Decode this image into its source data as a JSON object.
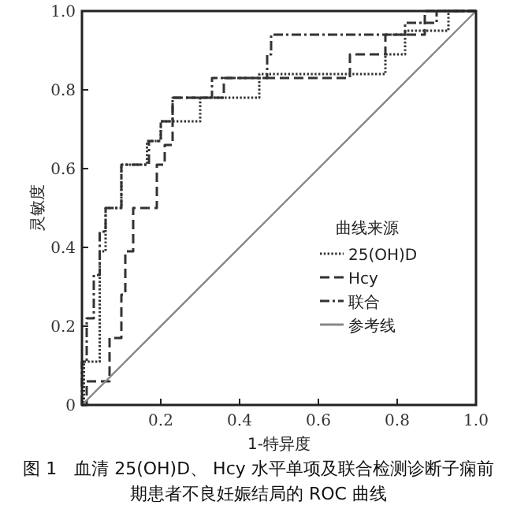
{
  "chart_data": {
    "type": "line",
    "xlabel": "1-特异度",
    "ylabel": "灵敏度",
    "legend_title": "曲线来源",
    "annotations": [
      "图 1　血清 25(OH)D、 Hcy 水平单项及联合检测诊断子痫前期患者不良妊娠结局的 ROC 曲线"
    ],
    "xlim": [
      0,
      1
    ],
    "ylim": [
      0,
      1
    ],
    "xticks": [
      0.2,
      0.4,
      0.6,
      0.8,
      {
        "value": 1,
        "label": "1.0"
      }
    ],
    "yticks": [
      0,
      0.2,
      0.4,
      0.6,
      0.8,
      {
        "value": 1,
        "label": "1.0"
      }
    ],
    "grid": false,
    "legend": "bottom right",
    "marker": "none",
    "series": [
      {
        "name": "25(OH)D",
        "color": "#333333",
        "line_style": "dotted",
        "x": [
          0,
          0.005,
          0.005,
          0.045,
          0.045,
          0.06,
          0.06,
          0.1,
          0.1,
          0.165,
          0.165,
          0.2,
          0.2,
          0.3,
          0.3,
          0.45,
          0.45,
          0.77,
          0.77,
          0.82,
          0.82,
          0.93,
          0.93,
          1
        ],
        "values": [
          0,
          0,
          0.11,
          0.11,
          0.39,
          0.39,
          0.5,
          0.5,
          0.61,
          0.61,
          0.67,
          0.67,
          0.72,
          0.72,
          0.78,
          0.78,
          0.84,
          0.84,
          0.89,
          0.89,
          0.95,
          0.95,
          1,
          1
        ]
      },
      {
        "name": "Hcy",
        "color": "#333333",
        "line_style": "dashed",
        "x": [
          0,
          0.012,
          0.012,
          0.07,
          0.07,
          0.1,
          0.1,
          0.11,
          0.11,
          0.13,
          0.13,
          0.19,
          0.19,
          0.21,
          0.21,
          0.23,
          0.23,
          0.36,
          0.36,
          0.68,
          0.68,
          0.77,
          0.77,
          0.87,
          0.87,
          1
        ],
        "values": [
          0,
          0,
          0.06,
          0.06,
          0.17,
          0.17,
          0.28,
          0.28,
          0.39,
          0.39,
          0.5,
          0.5,
          0.61,
          0.61,
          0.66,
          0.66,
          0.78,
          0.78,
          0.83,
          0.83,
          0.89,
          0.89,
          0.94,
          0.94,
          1,
          1
        ]
      },
      {
        "name": "联合",
        "color": "#333333",
        "line_style": "dashdot",
        "x": [
          0,
          0,
          0.012,
          0.012,
          0.03,
          0.03,
          0.045,
          0.045,
          0.06,
          0.06,
          0.1,
          0.1,
          0.17,
          0.17,
          0.2,
          0.2,
          0.23,
          0.23,
          0.33,
          0.33,
          0.47,
          0.47,
          0.48,
          0.48,
          0.82,
          0.82,
          0.9,
          0.9,
          1
        ],
        "values": [
          0,
          0.11,
          0.11,
          0.22,
          0.22,
          0.33,
          0.33,
          0.44,
          0.44,
          0.5,
          0.5,
          0.61,
          0.61,
          0.67,
          0.67,
          0.72,
          0.72,
          0.78,
          0.78,
          0.83,
          0.83,
          0.89,
          0.89,
          0.94,
          0.94,
          0.97,
          0.97,
          1,
          1
        ]
      },
      {
        "name": "参考线",
        "color": "#888888",
        "line_style": "solid",
        "x": [
          0,
          1
        ],
        "values": [
          0,
          1
        ]
      }
    ]
  }
}
